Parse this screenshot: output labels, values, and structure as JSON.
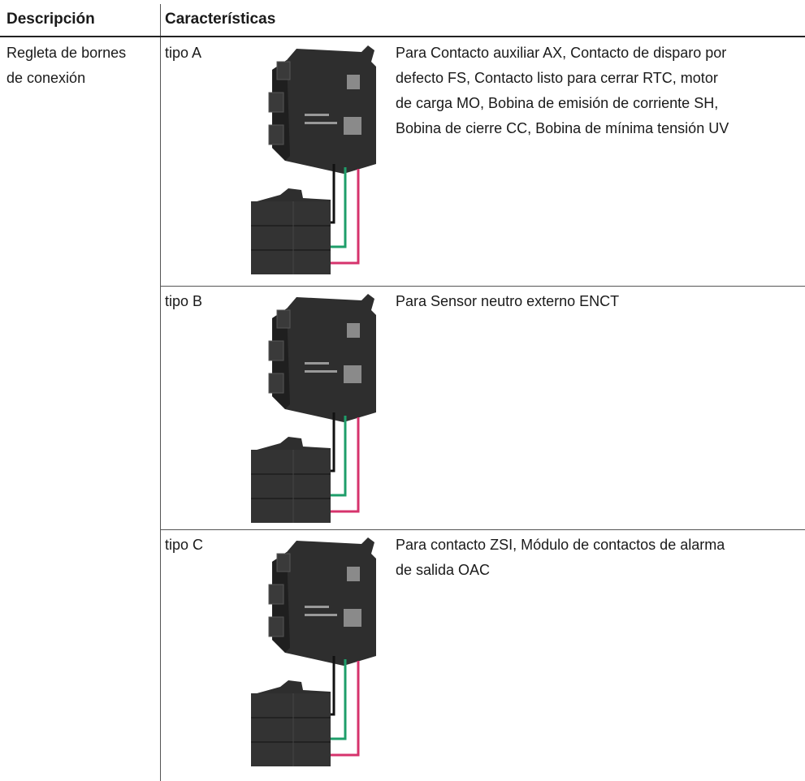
{
  "table": {
    "header": [
      "Descripción",
      "Características"
    ],
    "description": [
      "Regleta de bornes",
      "de conexión"
    ],
    "items": [
      {
        "type": "tipo A",
        "text": [
          "Para Contacto auxiliar AX, Contacto de disparo por",
          "defecto FS, Contacto listo para cerrar RTC, motor",
          "de carga MO, Bobina de emisión de corriente SH,",
          "Bobina de cierre CC, Bobina de mínima tensión UV"
        ]
      },
      {
        "type": "tipo B",
        "text": [
          "Para Sensor neutro externo ENCT"
        ]
      },
      {
        "type": "tipo C",
        "text": [
          "Para contacto ZSI, Módulo de contactos de alarma",
          "de salida OAC"
        ]
      }
    ]
  }
}
